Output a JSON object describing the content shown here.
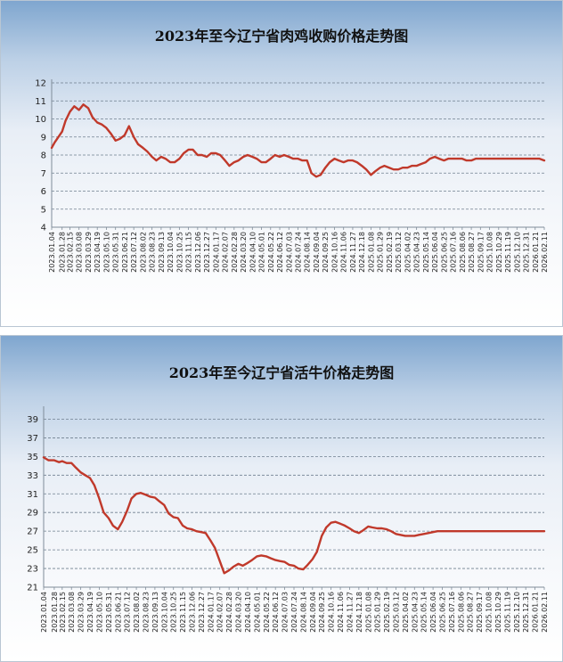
{
  "chart_data": [
    {
      "type": "line",
      "title": "2023年至今辽宁省肉鸡收购价格走势图",
      "xlabel": "",
      "ylabel": "",
      "ylim": [
        4,
        12
      ],
      "yticks": [
        4,
        5,
        6,
        7,
        8,
        9,
        10,
        11,
        12
      ],
      "grid": true,
      "line_color": "#c0392b",
      "x_labels": [
        "2023.01.04",
        "2023.01.28",
        "2023.02.15",
        "2023.03.08",
        "2023.03.29",
        "2023.04.19",
        "2023.05.10",
        "2023.05.31",
        "2023.06.21",
        "2023.07.12",
        "2023.08.02",
        "2023.08.23",
        "2023.09.13",
        "2023.10.04",
        "2023.10.25",
        "2023.11.15",
        "2023.12.06",
        "2023.12.27",
        "2024.01.17",
        "2024.02.07",
        "2024.02.28",
        "2024.03.20",
        "2024.04.10",
        "2024.05.01",
        "2024.05.22",
        "2024.06.12",
        "2024.07.03",
        "2024.07.24",
        "2024.08.14",
        "2024.09.04",
        "2024.09.25",
        "2024.10.16",
        "2024.11.06",
        "2024.11.27",
        "2024.12.18",
        "2025.01.08",
        "2025.01.29",
        "2025.02.19",
        "2025.03.12",
        "2025.04.02",
        "2025.04.23",
        "2025.05.14",
        "2025.06.04",
        "2025.06.25",
        "2025.07.16",
        "2025.08.06",
        "2025.08.27",
        "2025.09.17",
        "2025.10.08",
        "2025.10.29",
        "2025.11.19",
        "2025.12.10",
        "2025.12.31",
        "2026.01.21",
        "2026.02.11"
      ],
      "series": [
        {
          "x": [
            "2023.01.04",
            "2023.01.11",
            "2023.01.28",
            "2023.02.05",
            "2023.02.15",
            "2023.02.25",
            "2023.03.08",
            "2023.03.18",
            "2023.03.29",
            "2023.04.08",
            "2023.04.19",
            "2023.04.29",
            "2023.05.10",
            "2023.05.20",
            "2023.05.31",
            "2023.06.10",
            "2023.06.21",
            "2023.07.01",
            "2023.07.12",
            "2023.07.22",
            "2023.08.02",
            "2023.08.12",
            "2023.08.23",
            "2023.09.02",
            "2023.09.13",
            "2023.09.23",
            "2023.10.04",
            "2023.10.14",
            "2023.10.25",
            "2023.11.04",
            "2023.11.15",
            "2023.11.25",
            "2023.12.06",
            "2023.12.16",
            "2023.12.27",
            "2024.01.06",
            "2024.01.17",
            "2024.01.27",
            "2024.02.07",
            "2024.02.17",
            "2024.02.28",
            "2024.03.09",
            "2024.03.20",
            "2024.03.30",
            "2024.04.10",
            "2024.04.20",
            "2024.05.01",
            "2024.05.11",
            "2024.05.22",
            "2024.06.01",
            "2024.06.12",
            "2024.06.22",
            "2024.07.03",
            "2024.07.13",
            "2024.07.24",
            "2024.08.03",
            "2024.08.14",
            "2024.08.24",
            "2024.09.04",
            "2024.09.14",
            "2024.09.25",
            "2024.10.05",
            "2024.10.16",
            "2024.10.26",
            "2024.11.06",
            "2024.11.16",
            "2024.11.27",
            "2024.12.07",
            "2024.12.18",
            "2024.12.28",
            "2025.01.08",
            "2025.01.18",
            "2025.01.29",
            "2025.02.08",
            "2025.02.19",
            "2025.03.01",
            "2025.03.12",
            "2025.03.22",
            "2025.04.02",
            "2025.04.12",
            "2025.04.23",
            "2025.05.03",
            "2025.05.14",
            "2025.05.24",
            "2025.06.04",
            "2025.06.14",
            "2025.06.25",
            "2025.07.05",
            "2025.07.16",
            "2025.07.26",
            "2025.08.06",
            "2025.08.16",
            "2025.08.27",
            "2025.09.06",
            "2025.09.17",
            "2025.09.27",
            "2025.10.08",
            "2025.10.18",
            "2025.10.29",
            "2025.11.08",
            "2025.11.19",
            "2025.11.29",
            "2025.12.10",
            "2025.12.20",
            "2025.12.31",
            "2026.01.10",
            "2026.01.21",
            "2026.01.31",
            "2026.02.11"
          ],
          "values": [
            8.4,
            8.7,
            9.3,
            9.9,
            10.4,
            10.7,
            10.5,
            10.8,
            10.6,
            10.1,
            9.8,
            9.7,
            9.5,
            9.2,
            8.8,
            8.9,
            9.1,
            9.6,
            9.0,
            8.6,
            8.4,
            8.2,
            7.9,
            7.7,
            7.9,
            7.8,
            7.6,
            7.6,
            7.8,
            8.1,
            8.3,
            8.3,
            8.0,
            8.0,
            7.9,
            8.1,
            8.1,
            8.0,
            7.7,
            7.4,
            7.6,
            7.7,
            7.9,
            8.0,
            7.9,
            7.8,
            7.6,
            7.6,
            7.8,
            8.0,
            7.9,
            8.0,
            7.9,
            7.8,
            7.8,
            7.7,
            7.7,
            7.0,
            6.8,
            6.9,
            7.3,
            7.6,
            7.8,
            7.7,
            7.6,
            7.7,
            7.7,
            7.6,
            7.4,
            7.2,
            6.9,
            7.1,
            7.3,
            7.4,
            7.3,
            7.2,
            7.2,
            7.3,
            7.3,
            7.4,
            7.4,
            7.5,
            7.6,
            7.8,
            7.9,
            7.8,
            7.7,
            7.8,
            7.8,
            7.8,
            7.8,
            7.7,
            7.7,
            7.8,
            7.8,
            7.8,
            7.8,
            7.8,
            7.8,
            7.8,
            7.8,
            7.8,
            7.8,
            7.8,
            7.8,
            7.8,
            7.8,
            7.8,
            7.7
          ]
        }
      ]
    },
    {
      "type": "line",
      "title": "2023年至今辽宁省活牛价格走势图",
      "xlabel": "",
      "ylabel": "",
      "ylim": [
        21,
        40
      ],
      "yticks": [
        21,
        23,
        25,
        27,
        29,
        31,
        33,
        35,
        37,
        39
      ],
      "grid": true,
      "line_color": "#c0392b",
      "x_labels": [
        "2023.01.04",
        "2023.01.28",
        "2023.02.15",
        "2023.03.08",
        "2023.03.29",
        "2023.04.19",
        "2023.05.10",
        "2023.05.31",
        "2023.06.21",
        "2023.07.12",
        "2023.08.02",
        "2023.08.23",
        "2023.09.13",
        "2023.10.04",
        "2023.10.25",
        "2023.11.15",
        "2023.12.06",
        "2023.12.27",
        "2024.01.17",
        "2024.02.07",
        "2024.02.28",
        "2024.03.20",
        "2024.04.10",
        "2024.05.01",
        "2024.05.22",
        "2024.06.12",
        "2024.07.03",
        "2024.07.24",
        "2024.08.14",
        "2024.09.04",
        "2024.09.25",
        "2024.10.16",
        "2024.11.06",
        "2024.11.27",
        "2024.12.18",
        "2025.01.08",
        "2025.01.29",
        "2025.02.19",
        "2025.03.12",
        "2025.04.02",
        "2025.04.23",
        "2025.05.14",
        "2025.06.04",
        "2025.06.25",
        "2025.07.16",
        "2025.08.06",
        "2025.08.27",
        "2025.09.17",
        "2025.10.08",
        "2025.10.29",
        "2025.11.19",
        "2025.12.10",
        "2025.12.31",
        "2026.01.21",
        "2026.02.11"
      ],
      "series": [
        {
          "x": [
            "2023.01.04",
            "2023.01.15",
            "2023.01.28",
            "2023.02.08",
            "2023.02.15",
            "2023.02.25",
            "2023.03.08",
            "2023.03.18",
            "2023.03.29",
            "2023.04.08",
            "2023.04.19",
            "2023.04.29",
            "2023.05.10",
            "2023.05.20",
            "2023.05.31",
            "2023.06.10",
            "2023.06.21",
            "2023.07.01",
            "2023.07.12",
            "2023.07.22",
            "2023.08.02",
            "2023.08.12",
            "2023.08.23",
            "2023.09.02",
            "2023.09.13",
            "2023.09.23",
            "2023.10.04",
            "2023.10.14",
            "2023.10.25",
            "2023.11.04",
            "2023.11.15",
            "2023.11.25",
            "2023.12.06",
            "2023.12.16",
            "2023.12.27",
            "2024.01.06",
            "2024.01.17",
            "2024.01.27",
            "2024.02.07",
            "2024.02.17",
            "2024.02.28",
            "2024.03.09",
            "2024.03.20",
            "2024.03.30",
            "2024.04.10",
            "2024.04.20",
            "2024.05.01",
            "2024.05.11",
            "2024.05.22",
            "2024.06.01",
            "2024.06.12",
            "2024.06.22",
            "2024.07.03",
            "2024.07.13",
            "2024.07.24",
            "2024.08.03",
            "2024.08.14",
            "2024.08.24",
            "2024.09.04",
            "2024.09.14",
            "2024.09.25",
            "2024.10.05",
            "2024.10.16",
            "2024.10.26",
            "2024.11.06",
            "2024.11.16",
            "2024.11.27",
            "2024.12.07",
            "2024.12.18",
            "2024.12.28",
            "2025.01.08",
            "2025.01.18",
            "2025.01.29",
            "2025.02.08",
            "2025.02.19",
            "2025.03.01",
            "2025.03.12",
            "2025.03.22",
            "2025.04.02",
            "2025.04.12",
            "2025.04.23",
            "2025.05.03",
            "2025.05.14",
            "2025.05.24",
            "2025.06.04",
            "2025.06.14",
            "2025.06.25",
            "2025.07.05",
            "2025.07.16",
            "2025.07.26",
            "2025.08.06",
            "2025.08.16",
            "2025.08.27",
            "2025.09.06",
            "2025.09.17",
            "2025.09.27",
            "2025.10.08",
            "2025.10.18",
            "2025.10.29",
            "2025.11.08",
            "2025.11.19",
            "2025.11.29",
            "2025.12.10",
            "2025.12.20",
            "2025.12.31",
            "2026.01.10",
            "2026.01.21",
            "2026.01.31",
            "2026.02.11"
          ],
          "values": [
            34.9,
            34.6,
            34.6,
            34.4,
            34.5,
            34.3,
            34.3,
            33.8,
            33.3,
            33.0,
            32.7,
            31.9,
            30.5,
            29.0,
            28.4,
            27.6,
            27.2,
            28.0,
            29.2,
            30.5,
            31.0,
            31.1,
            30.9,
            30.7,
            30.6,
            30.2,
            29.8,
            28.9,
            28.5,
            28.4,
            27.6,
            27.3,
            27.2,
            27.0,
            26.9,
            26.8,
            26.0,
            25.2,
            23.8,
            22.5,
            22.8,
            23.2,
            23.5,
            23.3,
            23.6,
            23.9,
            24.3,
            24.4,
            24.3,
            24.1,
            23.9,
            23.8,
            23.7,
            23.4,
            23.3,
            23.0,
            22.9,
            23.4,
            24.0,
            24.8,
            26.5,
            27.4,
            27.9,
            28.0,
            27.8,
            27.6,
            27.3,
            27.0,
            26.8,
            27.1,
            27.5,
            27.4,
            27.3,
            27.3,
            27.2,
            27.0,
            26.7,
            26.6,
            26.5,
            26.5,
            26.5,
            26.6,
            26.7,
            26.8,
            26.9,
            27.0,
            27.0,
            27.0,
            27.0,
            27.0,
            27.0,
            27.0,
            27.0,
            27.0,
            27.0,
            27.0,
            27.0,
            27.0,
            27.0,
            27.0,
            27.0,
            27.0,
            27.0,
            27.0,
            27.0,
            27.0,
            27.0,
            27.0,
            27.0
          ]
        }
      ]
    }
  ]
}
